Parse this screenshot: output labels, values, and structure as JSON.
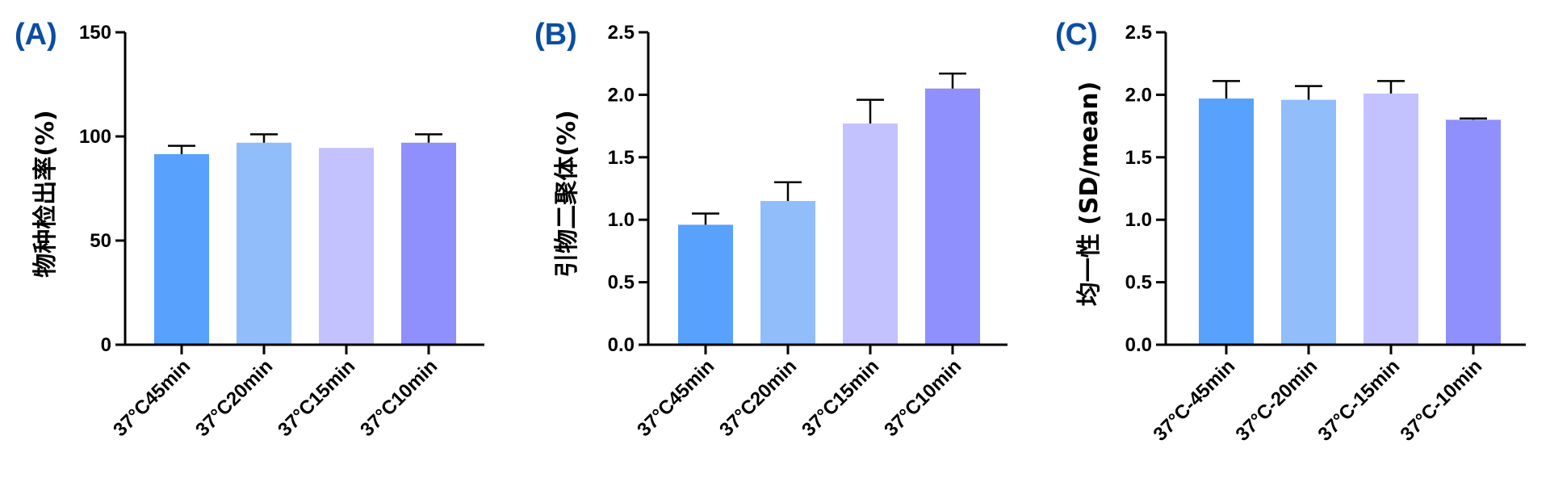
{
  "colors": {
    "panel_label": "#0b4ea2",
    "axis": "#000000",
    "bars": [
      "#58a1fd",
      "#91bdfb",
      "#c4c2fe",
      "#8f8ffd"
    ]
  },
  "chart_data": [
    {
      "type": "bar",
      "panel_label": "(A)",
      "ylabel": "物种检出率(%)",
      "categories": [
        "37°C45min",
        "37°C20min",
        "37°C15min",
        "37°C10min"
      ],
      "values": [
        91.5,
        97,
        94.5,
        97
      ],
      "errors": [
        4,
        4,
        0,
        4
      ],
      "ylim": [
        0,
        150
      ],
      "yticks": [
        0,
        50,
        100,
        150
      ],
      "yticklabels": [
        "0",
        "50",
        "100",
        "150"
      ],
      "grid": false
    },
    {
      "type": "bar",
      "panel_label": "(B)",
      "ylabel": "引物二聚体(%)",
      "categories": [
        "37°C45min",
        "37°C20min",
        "37°C15min",
        "37°C10min"
      ],
      "values": [
        0.96,
        1.15,
        1.77,
        2.05
      ],
      "errors": [
        0.09,
        0.15,
        0.19,
        0.12
      ],
      "ylim": [
        0,
        2.5
      ],
      "yticks": [
        0,
        0.5,
        1.0,
        1.5,
        2.0,
        2.5
      ],
      "yticklabels": [
        "0.0",
        "0.5",
        "1.0",
        "1.5",
        "2.0",
        "2.5"
      ],
      "grid": false
    },
    {
      "type": "bar",
      "panel_label": "(C)",
      "ylabel": "均一性 (SD/mean)",
      "categories": [
        "37°C-45min",
        "37°C-20min",
        "37°C-15min",
        "37°C-10min"
      ],
      "values": [
        1.97,
        1.96,
        2.01,
        1.8
      ],
      "errors": [
        0.14,
        0.11,
        0.1,
        0.01
      ],
      "ylim": [
        0,
        2.5
      ],
      "yticks": [
        0,
        0.5,
        1.0,
        1.5,
        2.0,
        2.5
      ],
      "yticklabels": [
        "0.0",
        "0.5",
        "1.0",
        "1.5",
        "2.0",
        "2.5"
      ],
      "grid": false
    }
  ]
}
